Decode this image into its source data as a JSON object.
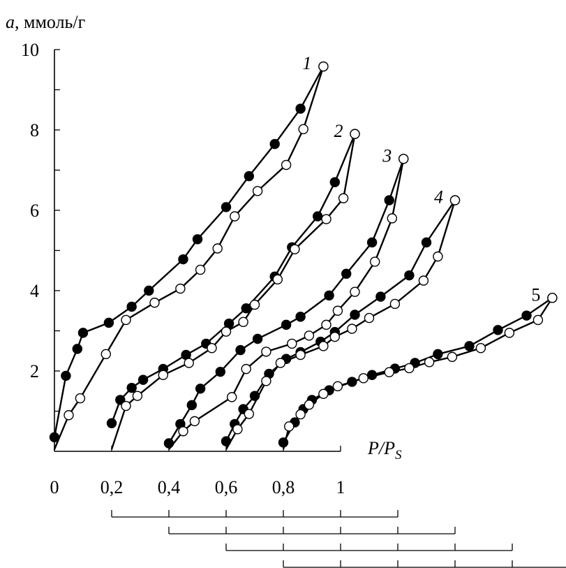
{
  "chart_data": {
    "type": "line",
    "ylabel_var": "a",
    "ylabel_unit": ", ммоль/г",
    "xlabel_main": "P/P",
    "xlabel_sub": "S",
    "ylim": [
      0,
      10
    ],
    "xlim": [
      0,
      1
    ],
    "yticks": [
      "2",
      "4",
      "6",
      "8",
      "10"
    ],
    "xticks": [
      "0",
      "0,2",
      "0,4",
      "0,6",
      "0,8",
      "1"
    ],
    "colors": {
      "ink": "#000000",
      "open_marker": "#ffffff"
    },
    "marker_legend": {
      "adsorption": "filled-circle",
      "desorption": "open-circle"
    },
    "offset_axes": [
      {
        "from": 0.2,
        "to": 1.2,
        "tick_step": 0.2
      },
      {
        "from": 0.4,
        "to": 1.4,
        "tick_step": 0.2
      },
      {
        "from": 0.6,
        "to": 1.6,
        "tick_step": 0.2
      },
      {
        "from": 0.8,
        "to": 1.8,
        "tick_step": 0.2
      }
    ],
    "series": [
      {
        "label": "1",
        "label_style": "italic",
        "adsorption": [
          [
            0,
            0.35
          ],
          [
            0.04,
            1.88
          ],
          [
            0.08,
            2.55
          ],
          [
            0.1,
            2.95
          ],
          [
            0.19,
            3.2
          ],
          [
            0.27,
            3.6
          ],
          [
            0.33,
            4.0
          ],
          [
            0.45,
            4.78
          ],
          [
            0.5,
            5.28
          ],
          [
            0.6,
            6.08
          ],
          [
            0.68,
            6.85
          ],
          [
            0.77,
            7.65
          ],
          [
            0.86,
            8.53
          ],
          [
            0.94,
            9.58
          ]
        ],
        "desorption": [
          [
            0.94,
            9.58
          ],
          [
            0.87,
            8.02
          ],
          [
            0.81,
            7.13
          ],
          [
            0.71,
            6.48
          ],
          [
            0.63,
            5.85
          ],
          [
            0.57,
            5.05
          ],
          [
            0.51,
            4.52
          ],
          [
            0.44,
            4.05
          ],
          [
            0.35,
            3.7
          ],
          [
            0.25,
            3.27
          ],
          [
            0.18,
            2.42
          ],
          [
            0.09,
            1.32
          ],
          [
            0.05,
            0.9
          ],
          [
            0,
            0.05
          ]
        ]
      },
      {
        "label": "2",
        "label_style": "italic",
        "adsorption": [
          [
            0.2,
            0.7
          ],
          [
            0.23,
            1.28
          ],
          [
            0.27,
            1.58
          ],
          [
            0.31,
            1.78
          ],
          [
            0.38,
            2.05
          ],
          [
            0.46,
            2.4
          ],
          [
            0.53,
            2.68
          ],
          [
            0.61,
            3.18
          ],
          [
            0.67,
            3.56
          ],
          [
            0.77,
            4.35
          ],
          [
            0.83,
            5.08
          ],
          [
            0.92,
            5.85
          ],
          [
            0.98,
            6.7
          ],
          [
            1.05,
            7.9
          ]
        ],
        "desorption": [
          [
            1.05,
            7.9
          ],
          [
            1.01,
            6.3
          ],
          [
            0.95,
            5.78
          ],
          [
            0.84,
            5.03
          ],
          [
            0.78,
            4.28
          ],
          [
            0.7,
            3.65
          ],
          [
            0.66,
            3.22
          ],
          [
            0.6,
            2.98
          ],
          [
            0.55,
            2.57
          ],
          [
            0.47,
            2.2
          ],
          [
            0.38,
            1.9
          ],
          [
            0.29,
            1.38
          ],
          [
            0.25,
            1.13
          ],
          [
            0.2,
            0.05
          ]
        ]
      },
      {
        "label": "3",
        "label_style": "italic",
        "adsorption": [
          [
            0.4,
            0.2
          ],
          [
            0.44,
            0.68
          ],
          [
            0.48,
            1.15
          ],
          [
            0.51,
            1.56
          ],
          [
            0.58,
            1.98
          ],
          [
            0.65,
            2.52
          ],
          [
            0.71,
            2.8
          ],
          [
            0.81,
            3.15
          ],
          [
            0.86,
            3.35
          ],
          [
            0.96,
            3.88
          ],
          [
            1.02,
            4.42
          ],
          [
            1.11,
            5.2
          ],
          [
            1.17,
            6.25
          ],
          [
            1.22,
            7.28
          ]
        ],
        "desorption": [
          [
            1.22,
            7.28
          ],
          [
            1.18,
            5.8
          ],
          [
            1.12,
            4.72
          ],
          [
            1.05,
            3.97
          ],
          [
            0.99,
            3.5
          ],
          [
            0.95,
            3.15
          ],
          [
            0.89,
            2.88
          ],
          [
            0.83,
            2.68
          ],
          [
            0.74,
            2.48
          ],
          [
            0.67,
            2.05
          ],
          [
            0.62,
            1.35
          ],
          [
            0.49,
            0.75
          ],
          [
            0.45,
            0.5
          ],
          [
            0.4,
            0.05
          ]
        ]
      },
      {
        "label": "4",
        "label_style": "italic",
        "adsorption": [
          [
            0.6,
            0.25
          ],
          [
            0.63,
            0.68
          ],
          [
            0.66,
            1.05
          ],
          [
            0.7,
            1.38
          ],
          [
            0.75,
            1.93
          ],
          [
            0.81,
            2.3
          ],
          [
            0.86,
            2.47
          ],
          [
            0.93,
            2.73
          ],
          [
            0.98,
            2.97
          ],
          [
            1.05,
            3.4
          ],
          [
            1.14,
            3.85
          ],
          [
            1.24,
            4.38
          ],
          [
            1.3,
            5.2
          ],
          [
            1.4,
            6.25
          ]
        ],
        "desorption": [
          [
            1.4,
            6.25
          ],
          [
            1.34,
            4.85
          ],
          [
            1.29,
            4.25
          ],
          [
            1.19,
            3.67
          ],
          [
            1.1,
            3.32
          ],
          [
            1.04,
            3.05
          ],
          [
            0.98,
            2.85
          ],
          [
            0.94,
            2.62
          ],
          [
            0.86,
            2.4
          ],
          [
            0.79,
            2.2
          ],
          [
            0.74,
            1.75
          ],
          [
            0.68,
            0.93
          ],
          [
            0.64,
            0.55
          ],
          [
            0.6,
            0.05
          ]
        ]
      },
      {
        "label": "5",
        "label_style": "upright",
        "adsorption": [
          [
            0.8,
            0.22
          ],
          [
            0.84,
            0.72
          ],
          [
            0.87,
            1.05
          ],
          [
            0.9,
            1.28
          ],
          [
            0.96,
            1.52
          ],
          [
            1.04,
            1.73
          ],
          [
            1.11,
            1.9
          ],
          [
            1.19,
            2.06
          ],
          [
            1.26,
            2.2
          ],
          [
            1.34,
            2.42
          ],
          [
            1.45,
            2.62
          ],
          [
            1.55,
            3.02
          ],
          [
            1.65,
            3.38
          ],
          [
            1.74,
            3.82
          ]
        ],
        "desorption": [
          [
            1.74,
            3.82
          ],
          [
            1.69,
            3.27
          ],
          [
            1.59,
            2.95
          ],
          [
            1.49,
            2.57
          ],
          [
            1.39,
            2.35
          ],
          [
            1.31,
            2.22
          ],
          [
            1.24,
            2.07
          ],
          [
            1.17,
            1.97
          ],
          [
            1.08,
            1.82
          ],
          [
            0.99,
            1.62
          ],
          [
            0.94,
            1.43
          ],
          [
            0.89,
            1.16
          ],
          [
            0.86,
            0.92
          ],
          [
            0.82,
            0.62
          ],
          [
            0.8,
            0.05
          ]
        ]
      }
    ]
  }
}
